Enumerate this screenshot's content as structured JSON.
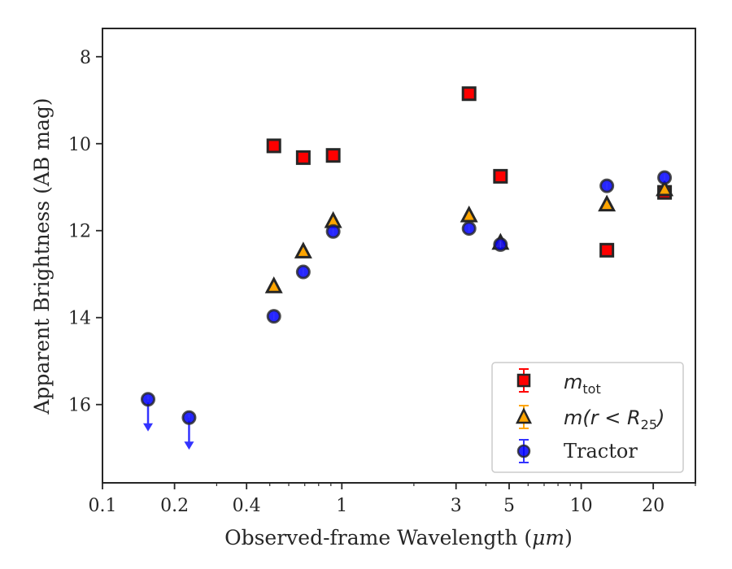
{
  "chart_data": {
    "type": "scatter",
    "xlabel_prefix": "Observed-frame Wavelength (",
    "xlabel_unit": "μm",
    "xlabel_suffix": ")",
    "ylabel": "Apparent Brightness (AB mag)",
    "x_scale": "log",
    "xlim": [
      0.1,
      30
    ],
    "ylim": [
      17.8,
      7.35
    ],
    "y_inverted": true,
    "x_ticks": [
      0.1,
      0.2,
      0.4,
      1,
      3,
      5,
      10,
      20
    ],
    "x_tick_labels": [
      "0.1",
      "0.2",
      "0.4",
      "1",
      "3",
      "5",
      "10",
      "20"
    ],
    "y_ticks": [
      8,
      10,
      12,
      14,
      16
    ],
    "y_tick_labels": [
      "8",
      "10",
      "12",
      "14",
      "16"
    ],
    "grid": false,
    "legend_position": "lower-right",
    "series": [
      {
        "key": "mtot",
        "label_base": "m",
        "label_sub": "tot",
        "marker": "square",
        "color": "#ff0000",
        "edge_color": "#262626",
        "errorbar_color": "#ff0000",
        "points": [
          {
            "x": 0.52,
            "y": 10.05
          },
          {
            "x": 0.69,
            "y": 10.32
          },
          {
            "x": 0.92,
            "y": 10.27
          },
          {
            "x": 3.4,
            "y": 8.85
          },
          {
            "x": 4.6,
            "y": 10.75
          },
          {
            "x": 12.8,
            "y": 12.45
          },
          {
            "x": 22.3,
            "y": 11.12
          }
        ]
      },
      {
        "key": "mr25",
        "label_base": "m(r < R",
        "label_sub": "25",
        "label_end": ")",
        "marker": "triangle",
        "color": "#ffa500",
        "edge_color": "#262626",
        "errorbar_color": "#ffa500",
        "points": [
          {
            "x": 0.52,
            "y": 13.28
          },
          {
            "x": 0.69,
            "y": 12.48
          },
          {
            "x": 0.92,
            "y": 11.78
          },
          {
            "x": 3.4,
            "y": 11.65
          },
          {
            "x": 4.6,
            "y": 12.28
          },
          {
            "x": 12.8,
            "y": 11.4
          },
          {
            "x": 22.3,
            "y": 11.05
          }
        ]
      },
      {
        "key": "tractor",
        "label": "Tractor",
        "marker": "circle",
        "color": "#0000ff",
        "edge_color": "#262626",
        "errorbar_color": "#3333ff",
        "points": [
          {
            "x": 0.155,
            "y": 15.88,
            "upper_limit": true
          },
          {
            "x": 0.23,
            "y": 16.3,
            "upper_limit": true
          },
          {
            "x": 0.52,
            "y": 13.97
          },
          {
            "x": 0.69,
            "y": 12.95
          },
          {
            "x": 0.92,
            "y": 12.02
          },
          {
            "x": 3.4,
            "y": 11.95
          },
          {
            "x": 4.6,
            "y": 12.32
          },
          {
            "x": 12.8,
            "y": 10.97
          },
          {
            "x": 22.3,
            "y": 10.78
          }
        ]
      }
    ]
  }
}
